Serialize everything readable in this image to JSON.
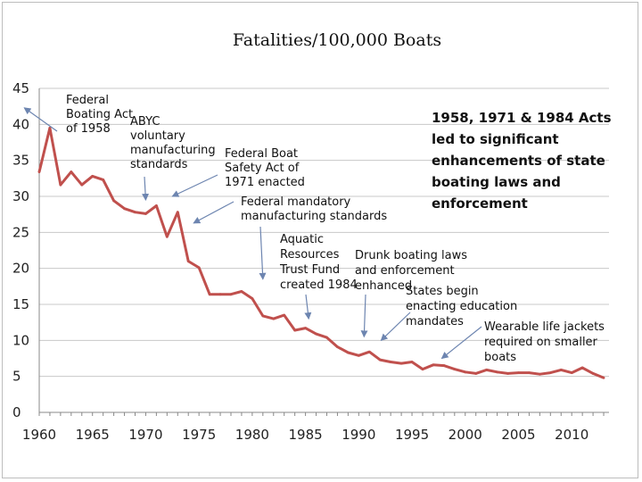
{
  "chart_data": {
    "type": "line",
    "title": "Fatalities/100,000 Boats",
    "xlabel": "",
    "ylabel": "",
    "xlim": [
      1960,
      2013.5
    ],
    "ylim": [
      0,
      45
    ],
    "x_ticks": [
      "1960",
      "1965",
      "1970",
      "1975",
      "1980",
      "1985",
      "1990",
      "1995",
      "2000",
      "2005",
      "2010"
    ],
    "y_ticks": [
      "0",
      "5",
      "10",
      "15",
      "20",
      "25",
      "30",
      "35",
      "40",
      "45"
    ],
    "grid": "horizontal",
    "series_color": "#c0504d",
    "series": [
      {
        "name": "Fatalities/100,000 Boats",
        "x": [
          1960,
          1961,
          1962,
          1963,
          1964,
          1965,
          1966,
          1967,
          1968,
          1969,
          1970,
          1971,
          1972,
          1973,
          1974,
          1975,
          1976,
          1977,
          1978,
          1979,
          1980,
          1981,
          1982,
          1983,
          1984,
          1985,
          1986,
          1987,
          1988,
          1989,
          1990,
          1991,
          1992,
          1993,
          1994,
          1995,
          1996,
          1997,
          1998,
          1999,
          2000,
          2001,
          2002,
          2003,
          2004,
          2005,
          2006,
          2007,
          2008,
          2009,
          2010,
          2011,
          2012,
          2013
        ],
        "values": [
          33.4,
          39.5,
          31.6,
          33.4,
          31.6,
          32.8,
          32.3,
          29.4,
          28.3,
          27.8,
          27.6,
          28.7,
          24.4,
          27.8,
          21.0,
          20.1,
          16.4,
          16.4,
          16.4,
          16.8,
          15.8,
          13.4,
          13.0,
          13.5,
          11.4,
          11.7,
          10.9,
          10.4,
          9.1,
          8.3,
          7.9,
          8.4,
          7.3,
          7.0,
          6.8,
          7.0,
          6.0,
          6.6,
          6.5,
          6.0,
          5.6,
          5.4,
          5.9,
          5.6,
          5.4,
          5.5,
          5.5,
          5.3,
          5.5,
          5.9,
          5.5,
          6.2,
          5.4,
          4.8
        ]
      }
    ],
    "annotations": [
      {
        "id": "federal-boating-act",
        "lines": [
          "Federal",
          "Boating Act",
          "of 1958"
        ],
        "target": [
          1958.6,
          42.3
        ]
      },
      {
        "id": "abyc",
        "lines": [
          "ABYC",
          "voluntary",
          "manufacturing",
          "standards"
        ],
        "target": [
          1970,
          29.5
        ]
      },
      {
        "id": "federal-boat-safety-act",
        "lines": [
          "Federal Boat",
          "Safety Act of",
          "1971 enacted"
        ],
        "target": [
          1972.5,
          30.0
        ]
      },
      {
        "id": "federal-mandatory",
        "lines": [
          "Federal mandatory",
          "manufacturing standards"
        ],
        "target": [
          1974.5,
          26.3
        ]
      },
      {
        "id": "aquatic-resources",
        "lines": [
          "Aquatic",
          "Resources",
          "Trust Fund",
          "created 1984"
        ],
        "target": [
          1981,
          18.5
        ]
      },
      {
        "id": "aquatic-arrow",
        "lines": [],
        "target": [
          1985.3,
          13.0
        ]
      },
      {
        "id": "drunk-boating",
        "lines": [
          "Drunk boating laws",
          "and enforcement",
          "enhanced"
        ],
        "target": [
          1990.5,
          10.5
        ]
      },
      {
        "id": "education",
        "lines": [
          "States begin",
          "enacting education",
          "mandates"
        ],
        "target": [
          1992.1,
          10.0
        ]
      },
      {
        "id": "life-jackets",
        "lines": [
          "Wearable life jackets",
          "required on smaller",
          "boats"
        ],
        "target": [
          1997.8,
          7.5
        ]
      }
    ],
    "callout": [
      "1958, 1971 & 1984 Acts",
      "led to significant",
      "enhancements of state",
      "boating laws and",
      "enforcement"
    ]
  }
}
